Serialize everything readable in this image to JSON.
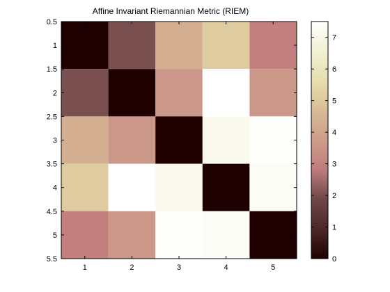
{
  "chart_data": {
    "type": "heatmap",
    "title": "Affine Invariant Riemannian Metric (RIEM)",
    "xlabel": "",
    "ylabel": "",
    "x_ticks": [
      "1",
      "2",
      "3",
      "4",
      "5"
    ],
    "y_ticks": [
      "0.5",
      "1",
      "1.5",
      "2",
      "2.5",
      "3",
      "3.5",
      "4",
      "4.5",
      "5",
      "5.5"
    ],
    "xlim": [
      0.5,
      5.5
    ],
    "ylim": [
      0.5,
      5.5
    ],
    "y_reversed": true,
    "matrix": [
      [
        0.0,
        2.0,
        4.3,
        5.1,
        2.9
      ],
      [
        2.0,
        0.0,
        3.6,
        7.5,
        3.6
      ],
      [
        4.3,
        3.6,
        0.0,
        7.1,
        7.4
      ],
      [
        5.1,
        7.5,
        7.1,
        0.0,
        7.3
      ],
      [
        2.9,
        3.6,
        7.4,
        7.3,
        0.0
      ]
    ],
    "colorbar": {
      "range": [
        0,
        7.5
      ],
      "ticks": [
        "0",
        "1",
        "2",
        "3",
        "4",
        "5",
        "6",
        "7"
      ],
      "placement": "right",
      "colormap": "pink"
    },
    "grid": false
  }
}
